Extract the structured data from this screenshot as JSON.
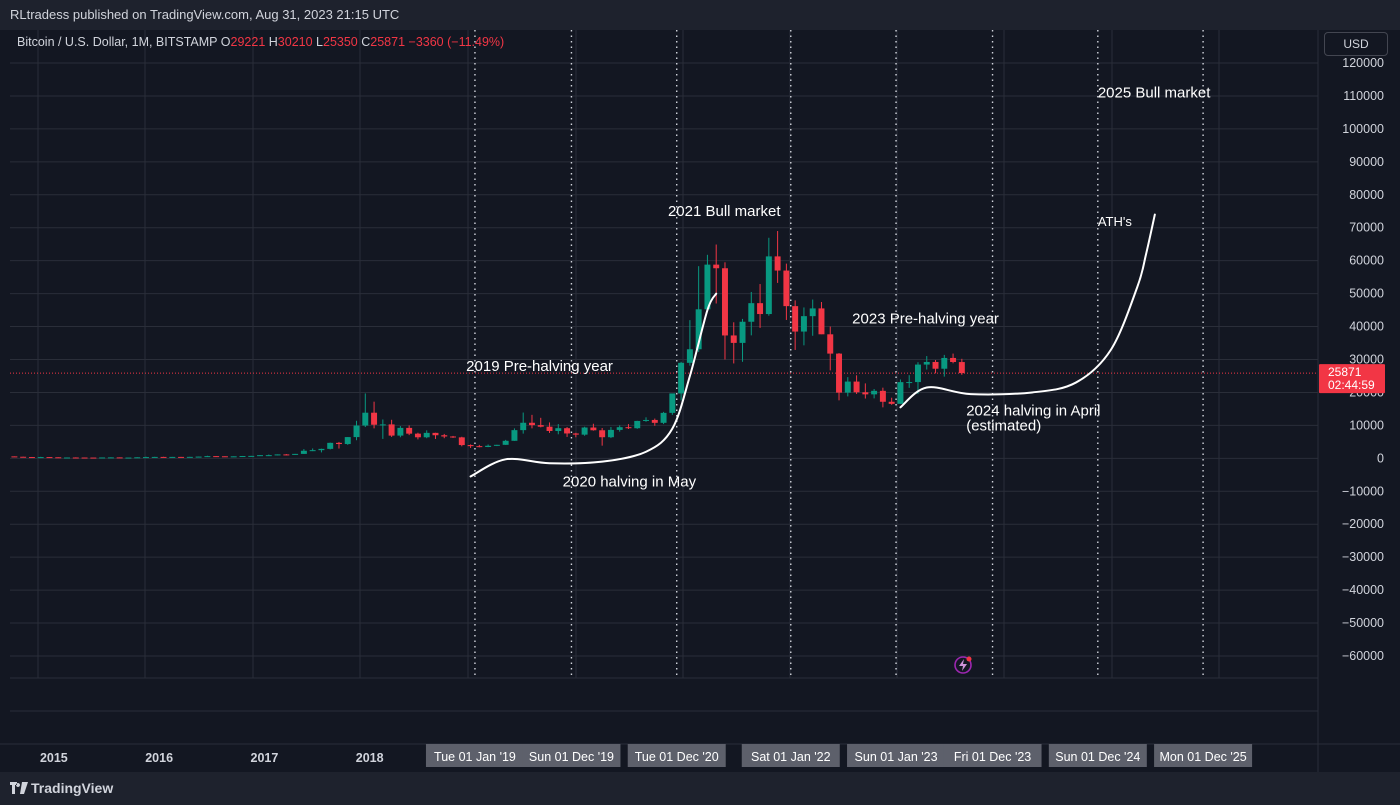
{
  "header": {
    "published_text": "RLtradess published on TradingView.com, Aug 31, 2023 21:15 UTC"
  },
  "legend": {
    "symbol": "Bitcoin / U.S. Dollar, 1M, BITSTAMP",
    "o_label": "O",
    "o_value": "29221",
    "h_label": "H",
    "h_value": "30210",
    "l_label": "L",
    "l_value": "25350",
    "c_label": "C",
    "c_value": "25871",
    "change": "−3360 (−11.49%)"
  },
  "currency_button": "USD",
  "price_tag": {
    "price": "25871",
    "countdown": "02:44:59"
  },
  "footer": {
    "logo_text": "TradingView"
  },
  "colors": {
    "background": "#131722",
    "up": "#089981",
    "down": "#f23645",
    "text": "#d1d4dc",
    "grid": "#2a2e39",
    "tag_bg": "#5d606b"
  },
  "chart_data": {
    "type": "candlestick",
    "symbol": "Bitcoin / U.S. Dollar",
    "interval": "1M",
    "exchange": "BITSTAMP",
    "y_axis": {
      "position": "right",
      "ylim": [
        -65000,
        123000
      ],
      "ticks": [
        120000,
        110000,
        100000,
        90000,
        80000,
        70000,
        60000,
        50000,
        40000,
        30000,
        20000,
        10000,
        0,
        -10000,
        -20000,
        -30000,
        -40000,
        -50000,
        -60000
      ],
      "tick_labels": [
        "120000",
        "110000",
        "100000",
        "90000",
        "80000",
        "70000",
        "60000",
        "50000",
        "40000",
        "30000",
        "20000",
        "10000",
        "0",
        "−10000",
        "−20000",
        "−30000",
        "−40000",
        "−50000",
        "−60000"
      ]
    },
    "x_axis": {
      "range": [
        "2014-08-01",
        "2026-03-01"
      ],
      "year_ticks": [
        {
          "label": "2015",
          "date": "2015-01-01"
        },
        {
          "label": "2016",
          "date": "2016-01-01"
        },
        {
          "label": "2017",
          "date": "2017-01-01"
        },
        {
          "label": "2018",
          "date": "2018-01-01"
        }
      ],
      "marked_dates": [
        {
          "label": "Tue 01 Jan '19",
          "date": "2019-01-01"
        },
        {
          "label": "Sun 01 Dec '19",
          "date": "2019-12-01"
        },
        {
          "label": "Tue 01 Dec '20",
          "date": "2020-12-01"
        },
        {
          "label": "Sat 01 Jan '22",
          "date": "2022-01-01"
        },
        {
          "label": "Sun 01 Jan '23",
          "date": "2023-01-01"
        },
        {
          "label": "Fri 01 Dec '23",
          "date": "2023-12-01"
        },
        {
          "label": "Sun 01 Dec '24",
          "date": "2024-12-01"
        },
        {
          "label": "Mon 01 Dec '25",
          "date": "2025-12-01"
        }
      ]
    },
    "grid": true,
    "last_price": 25871,
    "candles": [
      {
        "date": "2014-08",
        "o": 590,
        "h": 600,
        "l": 480,
        "c": 480
      },
      {
        "date": "2014-09",
        "o": 480,
        "h": 490,
        "l": 370,
        "c": 390
      },
      {
        "date": "2014-10",
        "o": 390,
        "h": 420,
        "l": 290,
        "c": 340
      },
      {
        "date": "2014-11",
        "o": 340,
        "h": 460,
        "l": 310,
        "c": 380
      },
      {
        "date": "2014-12",
        "o": 380,
        "h": 390,
        "l": 300,
        "c": 320
      },
      {
        "date": "2015-01",
        "o": 320,
        "h": 320,
        "l": 160,
        "c": 220
      },
      {
        "date": "2015-02",
        "o": 220,
        "h": 270,
        "l": 200,
        "c": 255
      },
      {
        "date": "2015-03",
        "o": 255,
        "h": 300,
        "l": 240,
        "c": 245
      },
      {
        "date": "2015-04",
        "o": 245,
        "h": 260,
        "l": 215,
        "c": 235
      },
      {
        "date": "2015-05",
        "o": 235,
        "h": 245,
        "l": 225,
        "c": 230
      },
      {
        "date": "2015-06",
        "o": 230,
        "h": 265,
        "l": 220,
        "c": 263
      },
      {
        "date": "2015-07",
        "o": 263,
        "h": 320,
        "l": 255,
        "c": 284
      },
      {
        "date": "2015-08",
        "o": 284,
        "h": 285,
        "l": 195,
        "c": 230
      },
      {
        "date": "2015-09",
        "o": 230,
        "h": 245,
        "l": 225,
        "c": 236
      },
      {
        "date": "2015-10",
        "o": 236,
        "h": 330,
        "l": 235,
        "c": 314
      },
      {
        "date": "2015-11",
        "o": 314,
        "h": 500,
        "l": 310,
        "c": 377
      },
      {
        "date": "2015-12",
        "o": 377,
        "h": 465,
        "l": 350,
        "c": 430
      },
      {
        "date": "2016-01",
        "o": 430,
        "h": 465,
        "l": 350,
        "c": 370
      },
      {
        "date": "2016-02",
        "o": 370,
        "h": 440,
        "l": 365,
        "c": 436
      },
      {
        "date": "2016-03",
        "o": 436,
        "h": 440,
        "l": 405,
        "c": 416
      },
      {
        "date": "2016-04",
        "o": 416,
        "h": 470,
        "l": 414,
        "c": 448
      },
      {
        "date": "2016-05",
        "o": 448,
        "h": 550,
        "l": 440,
        "c": 530
      },
      {
        "date": "2016-06",
        "o": 530,
        "h": 780,
        "l": 525,
        "c": 670
      },
      {
        "date": "2016-07",
        "o": 670,
        "h": 700,
        "l": 600,
        "c": 625
      },
      {
        "date": "2016-08",
        "o": 625,
        "h": 625,
        "l": 540,
        "c": 575
      },
      {
        "date": "2016-09",
        "o": 575,
        "h": 615,
        "l": 570,
        "c": 609
      },
      {
        "date": "2016-10",
        "o": 609,
        "h": 720,
        "l": 605,
        "c": 700
      },
      {
        "date": "2016-11",
        "o": 700,
        "h": 750,
        "l": 690,
        "c": 742
      },
      {
        "date": "2016-12",
        "o": 742,
        "h": 970,
        "l": 740,
        "c": 963
      },
      {
        "date": "2017-01",
        "o": 963,
        "h": 1150,
        "l": 750,
        "c": 965
      },
      {
        "date": "2017-02",
        "o": 965,
        "h": 1200,
        "l": 910,
        "c": 1190
      },
      {
        "date": "2017-03",
        "o": 1190,
        "h": 1300,
        "l": 900,
        "c": 1080
      },
      {
        "date": "2017-04",
        "o": 1080,
        "h": 1350,
        "l": 1060,
        "c": 1350
      },
      {
        "date": "2017-05",
        "o": 1350,
        "h": 2800,
        "l": 1340,
        "c": 2300
      },
      {
        "date": "2017-06",
        "o": 2300,
        "h": 3000,
        "l": 2200,
        "c": 2480
      },
      {
        "date": "2017-07",
        "o": 2480,
        "h": 2930,
        "l": 1800,
        "c": 2870
      },
      {
        "date": "2017-08",
        "o": 2870,
        "h": 4770,
        "l": 2700,
        "c": 4700
      },
      {
        "date": "2017-09",
        "o": 4700,
        "h": 4980,
        "l": 2970,
        "c": 4340
      },
      {
        "date": "2017-10",
        "o": 4340,
        "h": 6450,
        "l": 4100,
        "c": 6450
      },
      {
        "date": "2017-11",
        "o": 6450,
        "h": 11400,
        "l": 5500,
        "c": 9950
      },
      {
        "date": "2017-12",
        "o": 9950,
        "h": 19700,
        "l": 9500,
        "c": 13850
      },
      {
        "date": "2018-01",
        "o": 13850,
        "h": 17200,
        "l": 9100,
        "c": 10200
      },
      {
        "date": "2018-02",
        "o": 10200,
        "h": 11800,
        "l": 5900,
        "c": 10300
      },
      {
        "date": "2018-03",
        "o": 10300,
        "h": 11700,
        "l": 6500,
        "c": 6900
      },
      {
        "date": "2018-04",
        "o": 6900,
        "h": 9800,
        "l": 6400,
        "c": 9240
      },
      {
        "date": "2018-05",
        "o": 9240,
        "h": 10000,
        "l": 7050,
        "c": 7490
      },
      {
        "date": "2018-06",
        "o": 7490,
        "h": 7770,
        "l": 5750,
        "c": 6390
      },
      {
        "date": "2018-07",
        "o": 6390,
        "h": 8500,
        "l": 6110,
        "c": 7730
      },
      {
        "date": "2018-08",
        "o": 7730,
        "h": 7760,
        "l": 5880,
        "c": 7010
      },
      {
        "date": "2018-09",
        "o": 7010,
        "h": 7410,
        "l": 6110,
        "c": 6630
      },
      {
        "date": "2018-10",
        "o": 6630,
        "h": 6800,
        "l": 6200,
        "c": 6370
      },
      {
        "date": "2018-11",
        "o": 6370,
        "h": 6550,
        "l": 3650,
        "c": 4030
      },
      {
        "date": "2018-12",
        "o": 4030,
        "h": 4230,
        "l": 3150,
        "c": 3700
      },
      {
        "date": "2019-01",
        "o": 3700,
        "h": 4080,
        "l": 3350,
        "c": 3440
      },
      {
        "date": "2019-02",
        "o": 3440,
        "h": 4200,
        "l": 3390,
        "c": 3820
      },
      {
        "date": "2019-03",
        "o": 3820,
        "h": 4100,
        "l": 3720,
        "c": 4100
      },
      {
        "date": "2019-04",
        "o": 4100,
        "h": 5600,
        "l": 4080,
        "c": 5320
      },
      {
        "date": "2019-05",
        "o": 5320,
        "h": 9100,
        "l": 5300,
        "c": 8560
      },
      {
        "date": "2019-06",
        "o": 8560,
        "h": 13900,
        "l": 7500,
        "c": 10800
      },
      {
        "date": "2019-07",
        "o": 10800,
        "h": 13200,
        "l": 9100,
        "c": 10080
      },
      {
        "date": "2019-08",
        "o": 10080,
        "h": 12300,
        "l": 9400,
        "c": 9600
      },
      {
        "date": "2019-09",
        "o": 9600,
        "h": 10900,
        "l": 7700,
        "c": 8300
      },
      {
        "date": "2019-10",
        "o": 8300,
        "h": 10400,
        "l": 7300,
        "c": 9150
      },
      {
        "date": "2019-11",
        "o": 9150,
        "h": 9500,
        "l": 6500,
        "c": 7550
      },
      {
        "date": "2019-12",
        "o": 7550,
        "h": 7750,
        "l": 6400,
        "c": 7190
      },
      {
        "date": "2020-01",
        "o": 7190,
        "h": 9600,
        "l": 6850,
        "c": 9350
      },
      {
        "date": "2020-02",
        "o": 9350,
        "h": 10500,
        "l": 8400,
        "c": 8520
      },
      {
        "date": "2020-03",
        "o": 8520,
        "h": 9200,
        "l": 3850,
        "c": 6410
      },
      {
        "date": "2020-04",
        "o": 6410,
        "h": 9500,
        "l": 6150,
        "c": 8630
      },
      {
        "date": "2020-05",
        "o": 8630,
        "h": 10000,
        "l": 8100,
        "c": 9450
      },
      {
        "date": "2020-06",
        "o": 9450,
        "h": 10400,
        "l": 8900,
        "c": 9140
      },
      {
        "date": "2020-07",
        "o": 9140,
        "h": 11400,
        "l": 8950,
        "c": 11350
      },
      {
        "date": "2020-08",
        "o": 11350,
        "h": 12450,
        "l": 11100,
        "c": 11650
      },
      {
        "date": "2020-09",
        "o": 11650,
        "h": 12070,
        "l": 9880,
        "c": 10780
      },
      {
        "date": "2020-10",
        "o": 10780,
        "h": 14100,
        "l": 10400,
        "c": 13800
      },
      {
        "date": "2020-11",
        "o": 13800,
        "h": 19480,
        "l": 13200,
        "c": 19700
      },
      {
        "date": "2020-12",
        "o": 19700,
        "h": 29300,
        "l": 17600,
        "c": 28990
      },
      {
        "date": "2021-01",
        "o": 28990,
        "h": 41950,
        "l": 28130,
        "c": 33110
      },
      {
        "date": "2021-02",
        "o": 33110,
        "h": 58330,
        "l": 32300,
        "c": 45240
      },
      {
        "date": "2021-03",
        "o": 45240,
        "h": 61780,
        "l": 44950,
        "c": 58800
      },
      {
        "date": "2021-04",
        "o": 58800,
        "h": 64900,
        "l": 47000,
        "c": 57700
      },
      {
        "date": "2021-05",
        "o": 57700,
        "h": 59500,
        "l": 30000,
        "c": 37300
      },
      {
        "date": "2021-06",
        "o": 37300,
        "h": 41300,
        "l": 28800,
        "c": 35040
      },
      {
        "date": "2021-07",
        "o": 35040,
        "h": 42320,
        "l": 29300,
        "c": 41460
      },
      {
        "date": "2021-08",
        "o": 41460,
        "h": 50500,
        "l": 37330,
        "c": 47100
      },
      {
        "date": "2021-09",
        "o": 47100,
        "h": 52900,
        "l": 39600,
        "c": 43800
      },
      {
        "date": "2021-10",
        "o": 43800,
        "h": 66950,
        "l": 43300,
        "c": 61300
      },
      {
        "date": "2021-11",
        "o": 61300,
        "h": 69000,
        "l": 53250,
        "c": 57000
      },
      {
        "date": "2021-12",
        "o": 57000,
        "h": 59100,
        "l": 42000,
        "c": 46200
      },
      {
        "date": "2022-01",
        "o": 46200,
        "h": 47950,
        "l": 32900,
        "c": 38480
      },
      {
        "date": "2022-02",
        "o": 38480,
        "h": 45800,
        "l": 34300,
        "c": 43160
      },
      {
        "date": "2022-03",
        "o": 43160,
        "h": 48200,
        "l": 37200,
        "c": 45510
      },
      {
        "date": "2022-04",
        "o": 45510,
        "h": 47450,
        "l": 37700,
        "c": 37650
      },
      {
        "date": "2022-05",
        "o": 37650,
        "h": 40000,
        "l": 26700,
        "c": 31790
      },
      {
        "date": "2022-06",
        "o": 31790,
        "h": 31950,
        "l": 17600,
        "c": 19940
      },
      {
        "date": "2022-07",
        "o": 19940,
        "h": 24650,
        "l": 18800,
        "c": 23300
      },
      {
        "date": "2022-08",
        "o": 23300,
        "h": 25200,
        "l": 19550,
        "c": 20050
      },
      {
        "date": "2022-09",
        "o": 20050,
        "h": 22750,
        "l": 18150,
        "c": 19420
      },
      {
        "date": "2022-10",
        "o": 19420,
        "h": 21050,
        "l": 18200,
        "c": 20490
      },
      {
        "date": "2022-11",
        "o": 20490,
        "h": 21450,
        "l": 15480,
        "c": 17170
      },
      {
        "date": "2022-12",
        "o": 17170,
        "h": 18400,
        "l": 16250,
        "c": 16540
      },
      {
        "date": "2023-01",
        "o": 16540,
        "h": 23950,
        "l": 16500,
        "c": 23130
      },
      {
        "date": "2023-02",
        "o": 23130,
        "h": 25240,
        "l": 21400,
        "c": 23150
      },
      {
        "date": "2023-03",
        "o": 23150,
        "h": 29180,
        "l": 19550,
        "c": 28460
      },
      {
        "date": "2023-04",
        "o": 28460,
        "h": 31050,
        "l": 26950,
        "c": 29250
      },
      {
        "date": "2023-05",
        "o": 29250,
        "h": 29850,
        "l": 25800,
        "c": 27200
      },
      {
        "date": "2023-06",
        "o": 27200,
        "h": 31400,
        "l": 24800,
        "c": 30470
      },
      {
        "date": "2023-07",
        "o": 30470,
        "h": 31800,
        "l": 28850,
        "c": 29240
      },
      {
        "date": "2023-08",
        "o": 29221,
        "h": 30210,
        "l": 25350,
        "c": 25871
      }
    ],
    "projection_path": [
      {
        "date": "2018-12",
        "value": -5500
      },
      {
        "date": "2019-04",
        "value": -300
      },
      {
        "date": "2019-09",
        "value": -1500
      },
      {
        "date": "2020-03",
        "value": -1000
      },
      {
        "date": "2020-08",
        "value": 2000
      },
      {
        "date": "2020-11",
        "value": 9000
      },
      {
        "date": "2021-01",
        "value": 25000
      },
      {
        "date": "2021-03",
        "value": 45000
      },
      {
        "date": "2021-04",
        "value": 50000
      }
    ],
    "projection_path_2": [
      {
        "date": "2023-01",
        "value": 15500
      },
      {
        "date": "2023-04",
        "value": 21500
      },
      {
        "date": "2023-09",
        "value": 19500
      },
      {
        "date": "2024-04",
        "value": 20000
      },
      {
        "date": "2024-09",
        "value": 23000
      },
      {
        "date": "2025-01",
        "value": 33000
      },
      {
        "date": "2025-04",
        "value": 52000
      },
      {
        "date": "2025-05",
        "value": 62000
      },
      {
        "date": "2025-06",
        "value": 74000
      }
    ],
    "annotations": [
      {
        "text": "2019 Pre-halving year",
        "date": "2018-12",
        "value": 26500
      },
      {
        "text": "2020 halving in May",
        "date": "2019-11",
        "value": -8500
      },
      {
        "text": "2021 Bull market",
        "date": "2020-11",
        "value": 73500
      },
      {
        "text": "2023 Pre-halving year",
        "date": "2022-08",
        "value": 41000
      },
      {
        "text": "2024 halving in April",
        "date": "2023-09",
        "value": 13000
      },
      {
        "text": "(estimated)",
        "date": "2023-09",
        "value": 8500
      },
      {
        "text": "2025 Bull market",
        "date": "2024-12",
        "value": 109500
      },
      {
        "text": "ATH's",
        "date": "2024-12",
        "value": 70500
      }
    ]
  }
}
